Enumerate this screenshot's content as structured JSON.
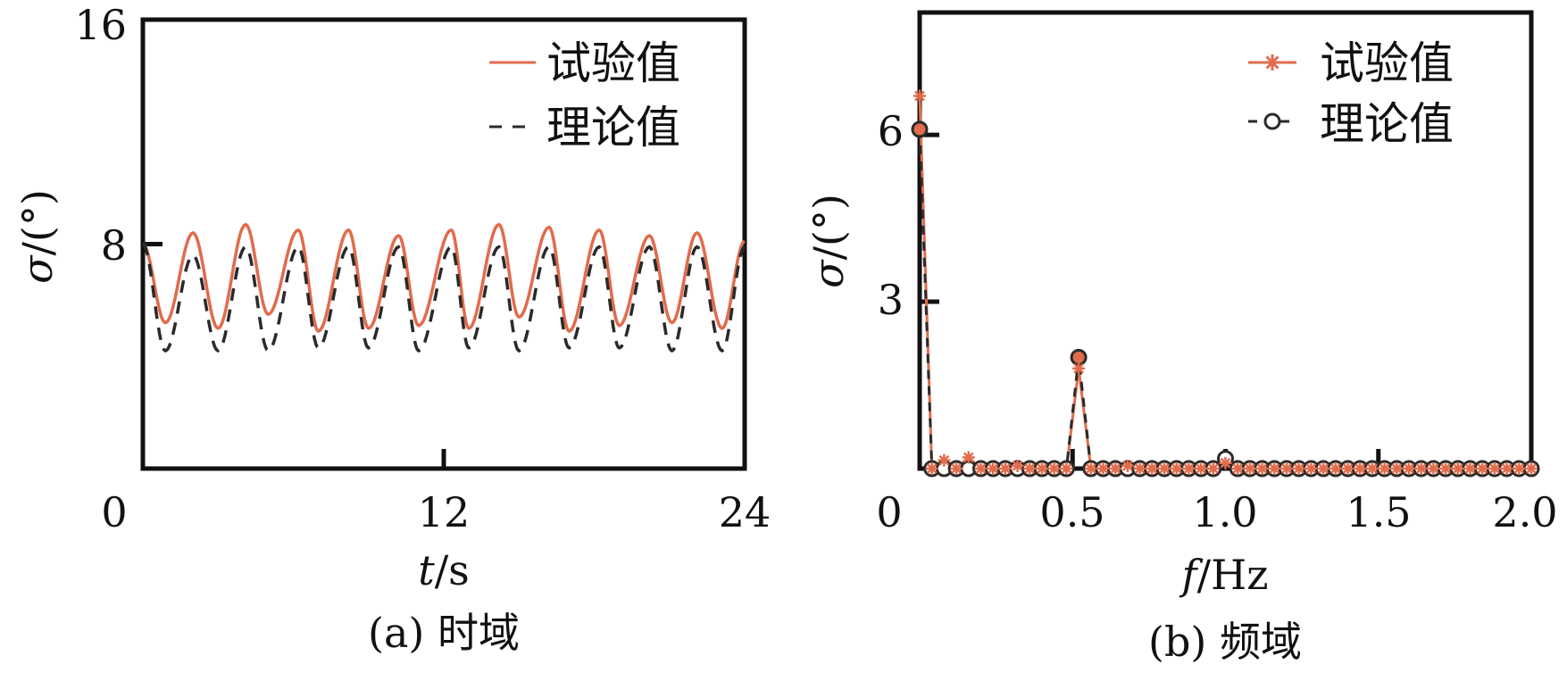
{
  "colors": {
    "experimental": "#e06c4c",
    "theoretical": "#2a2a2a",
    "axis": "#111111"
  },
  "chart_data": [
    {
      "type": "line",
      "caption": "(a) 时域",
      "xlabel_italic": "t",
      "xlabel_unit": "/s",
      "ylabel_italic": "σ",
      "ylabel_unit": "/(°)",
      "xlim": [
        0,
        24
      ],
      "ylim": [
        0,
        16
      ],
      "xticks": [
        0,
        12,
        24
      ],
      "yticks": [
        0,
        8,
        16
      ],
      "xtick_labels": [
        "0",
        "12",
        "24"
      ],
      "ytick_labels": [
        "8",
        "16"
      ],
      "legend_position": "top-right",
      "grid": false,
      "series": [
        {
          "name": "试验值",
          "style": "solid",
          "x": [
            0,
            0.9,
            2.0,
            3.0,
            4.1,
            5.0,
            6.2,
            7.0,
            8.2,
            9.0,
            10.2,
            11.0,
            12.3,
            13.0,
            14.2,
            15.0,
            16.2,
            17.0,
            18.2,
            19.0,
            20.2,
            21.1,
            22.1,
            23.1,
            24.0
          ],
          "values": [
            8.0,
            5.2,
            8.4,
            5.0,
            8.7,
            5.5,
            8.5,
            4.9,
            8.5,
            5.0,
            8.3,
            5.1,
            8.5,
            5.0,
            8.7,
            5.4,
            8.6,
            4.9,
            8.5,
            5.1,
            8.3,
            5.2,
            8.4,
            5.0,
            8.1
          ]
        },
        {
          "name": "理论值",
          "style": "dashed",
          "x": [
            0,
            0.9,
            2.0,
            3.0,
            4.1,
            5.0,
            6.2,
            7.0,
            8.2,
            9.0,
            10.2,
            11.0,
            12.3,
            13.0,
            14.2,
            15.0,
            16.2,
            17.0,
            18.2,
            19.0,
            20.2,
            21.1,
            22.1,
            23.1,
            24.0
          ],
          "values": [
            8.0,
            4.2,
            7.6,
            4.2,
            7.9,
            4.2,
            7.9,
            4.3,
            7.9,
            4.3,
            7.9,
            4.2,
            7.9,
            4.3,
            7.9,
            4.2,
            7.9,
            4.3,
            7.9,
            4.3,
            7.9,
            4.2,
            7.9,
            4.2,
            7.9
          ]
        }
      ]
    },
    {
      "type": "line",
      "caption": "(b) 频域",
      "xlabel_italic": "f",
      "xlabel_unit": "/Hz",
      "ylabel_italic": "σ",
      "ylabel_unit": "/(°)",
      "xlim": [
        0,
        2.0
      ],
      "ylim": [
        0,
        8.2
      ],
      "xticks": [
        0,
        0.5,
        1.0,
        1.5,
        2.0
      ],
      "yticks": [
        3,
        6
      ],
      "xtick_labels": [
        "0",
        "0.5",
        "1.0",
        "1.5",
        "2.0"
      ],
      "ytick_labels": [
        "3",
        "6"
      ],
      "legend_position": "top-right",
      "grid": false,
      "series": [
        {
          "name": "试验值",
          "marker": "asterisk",
          "x": [
            0.0,
            0.04,
            0.08,
            0.12,
            0.16,
            0.2,
            0.24,
            0.28,
            0.32,
            0.36,
            0.4,
            0.44,
            0.48,
            0.52,
            0.56,
            0.6,
            0.64,
            0.68,
            0.72,
            0.76,
            0.8,
            0.84,
            0.88,
            0.92,
            0.96,
            1.0,
            1.04,
            1.08,
            1.12,
            1.16,
            1.2,
            1.24,
            1.28,
            1.32,
            1.36,
            1.4,
            1.44,
            1.48,
            1.52,
            1.56,
            1.6,
            1.64,
            1.68,
            1.72,
            1.76,
            1.8,
            1.84,
            1.88,
            1.92,
            1.96,
            2.0
          ],
          "values": [
            6.7,
            0.0,
            0.15,
            0.0,
            0.2,
            0.0,
            0.0,
            0.0,
            0.05,
            0.0,
            0.0,
            0.0,
            0.0,
            1.8,
            0.0,
            0.0,
            0.0,
            0.05,
            0.0,
            0.0,
            0.0,
            0.0,
            0.0,
            0.0,
            0.0,
            0.1,
            0.0,
            0.0,
            0.0,
            0.0,
            0.0,
            0.0,
            0.0,
            0.0,
            0.0,
            0.0,
            0.0,
            0.0,
            0.0,
            0.0,
            0.0,
            0.0,
            0.0,
            0.0,
            0.0,
            0.0,
            0.0,
            0.0,
            0.0,
            0.0,
            0.0
          ]
        },
        {
          "name": "理论值",
          "marker": "circle",
          "x": [
            0.0,
            0.04,
            0.08,
            0.12,
            0.16,
            0.2,
            0.24,
            0.28,
            0.32,
            0.36,
            0.4,
            0.44,
            0.48,
            0.52,
            0.56,
            0.6,
            0.64,
            0.68,
            0.72,
            0.76,
            0.8,
            0.84,
            0.88,
            0.92,
            0.96,
            1.0,
            1.04,
            1.08,
            1.12,
            1.16,
            1.2,
            1.24,
            1.28,
            1.32,
            1.36,
            1.4,
            1.44,
            1.48,
            1.52,
            1.56,
            1.6,
            1.64,
            1.68,
            1.72,
            1.76,
            1.8,
            1.84,
            1.88,
            1.92,
            1.96,
            2.0
          ],
          "values": [
            6.1,
            0.0,
            0.0,
            0.0,
            0.0,
            0.0,
            0.0,
            0.0,
            0.0,
            0.0,
            0.0,
            0.0,
            0.0,
            2.0,
            0.0,
            0.0,
            0.0,
            0.0,
            0.0,
            0.0,
            0.0,
            0.0,
            0.0,
            0.0,
            0.0,
            0.18,
            0.0,
            0.0,
            0.0,
            0.0,
            0.0,
            0.0,
            0.0,
            0.0,
            0.0,
            0.0,
            0.0,
            0.0,
            0.0,
            0.0,
            0.0,
            0.0,
            0.0,
            0.0,
            0.0,
            0.0,
            0.0,
            0.0,
            0.0,
            0.0,
            0.0
          ]
        }
      ]
    }
  ]
}
